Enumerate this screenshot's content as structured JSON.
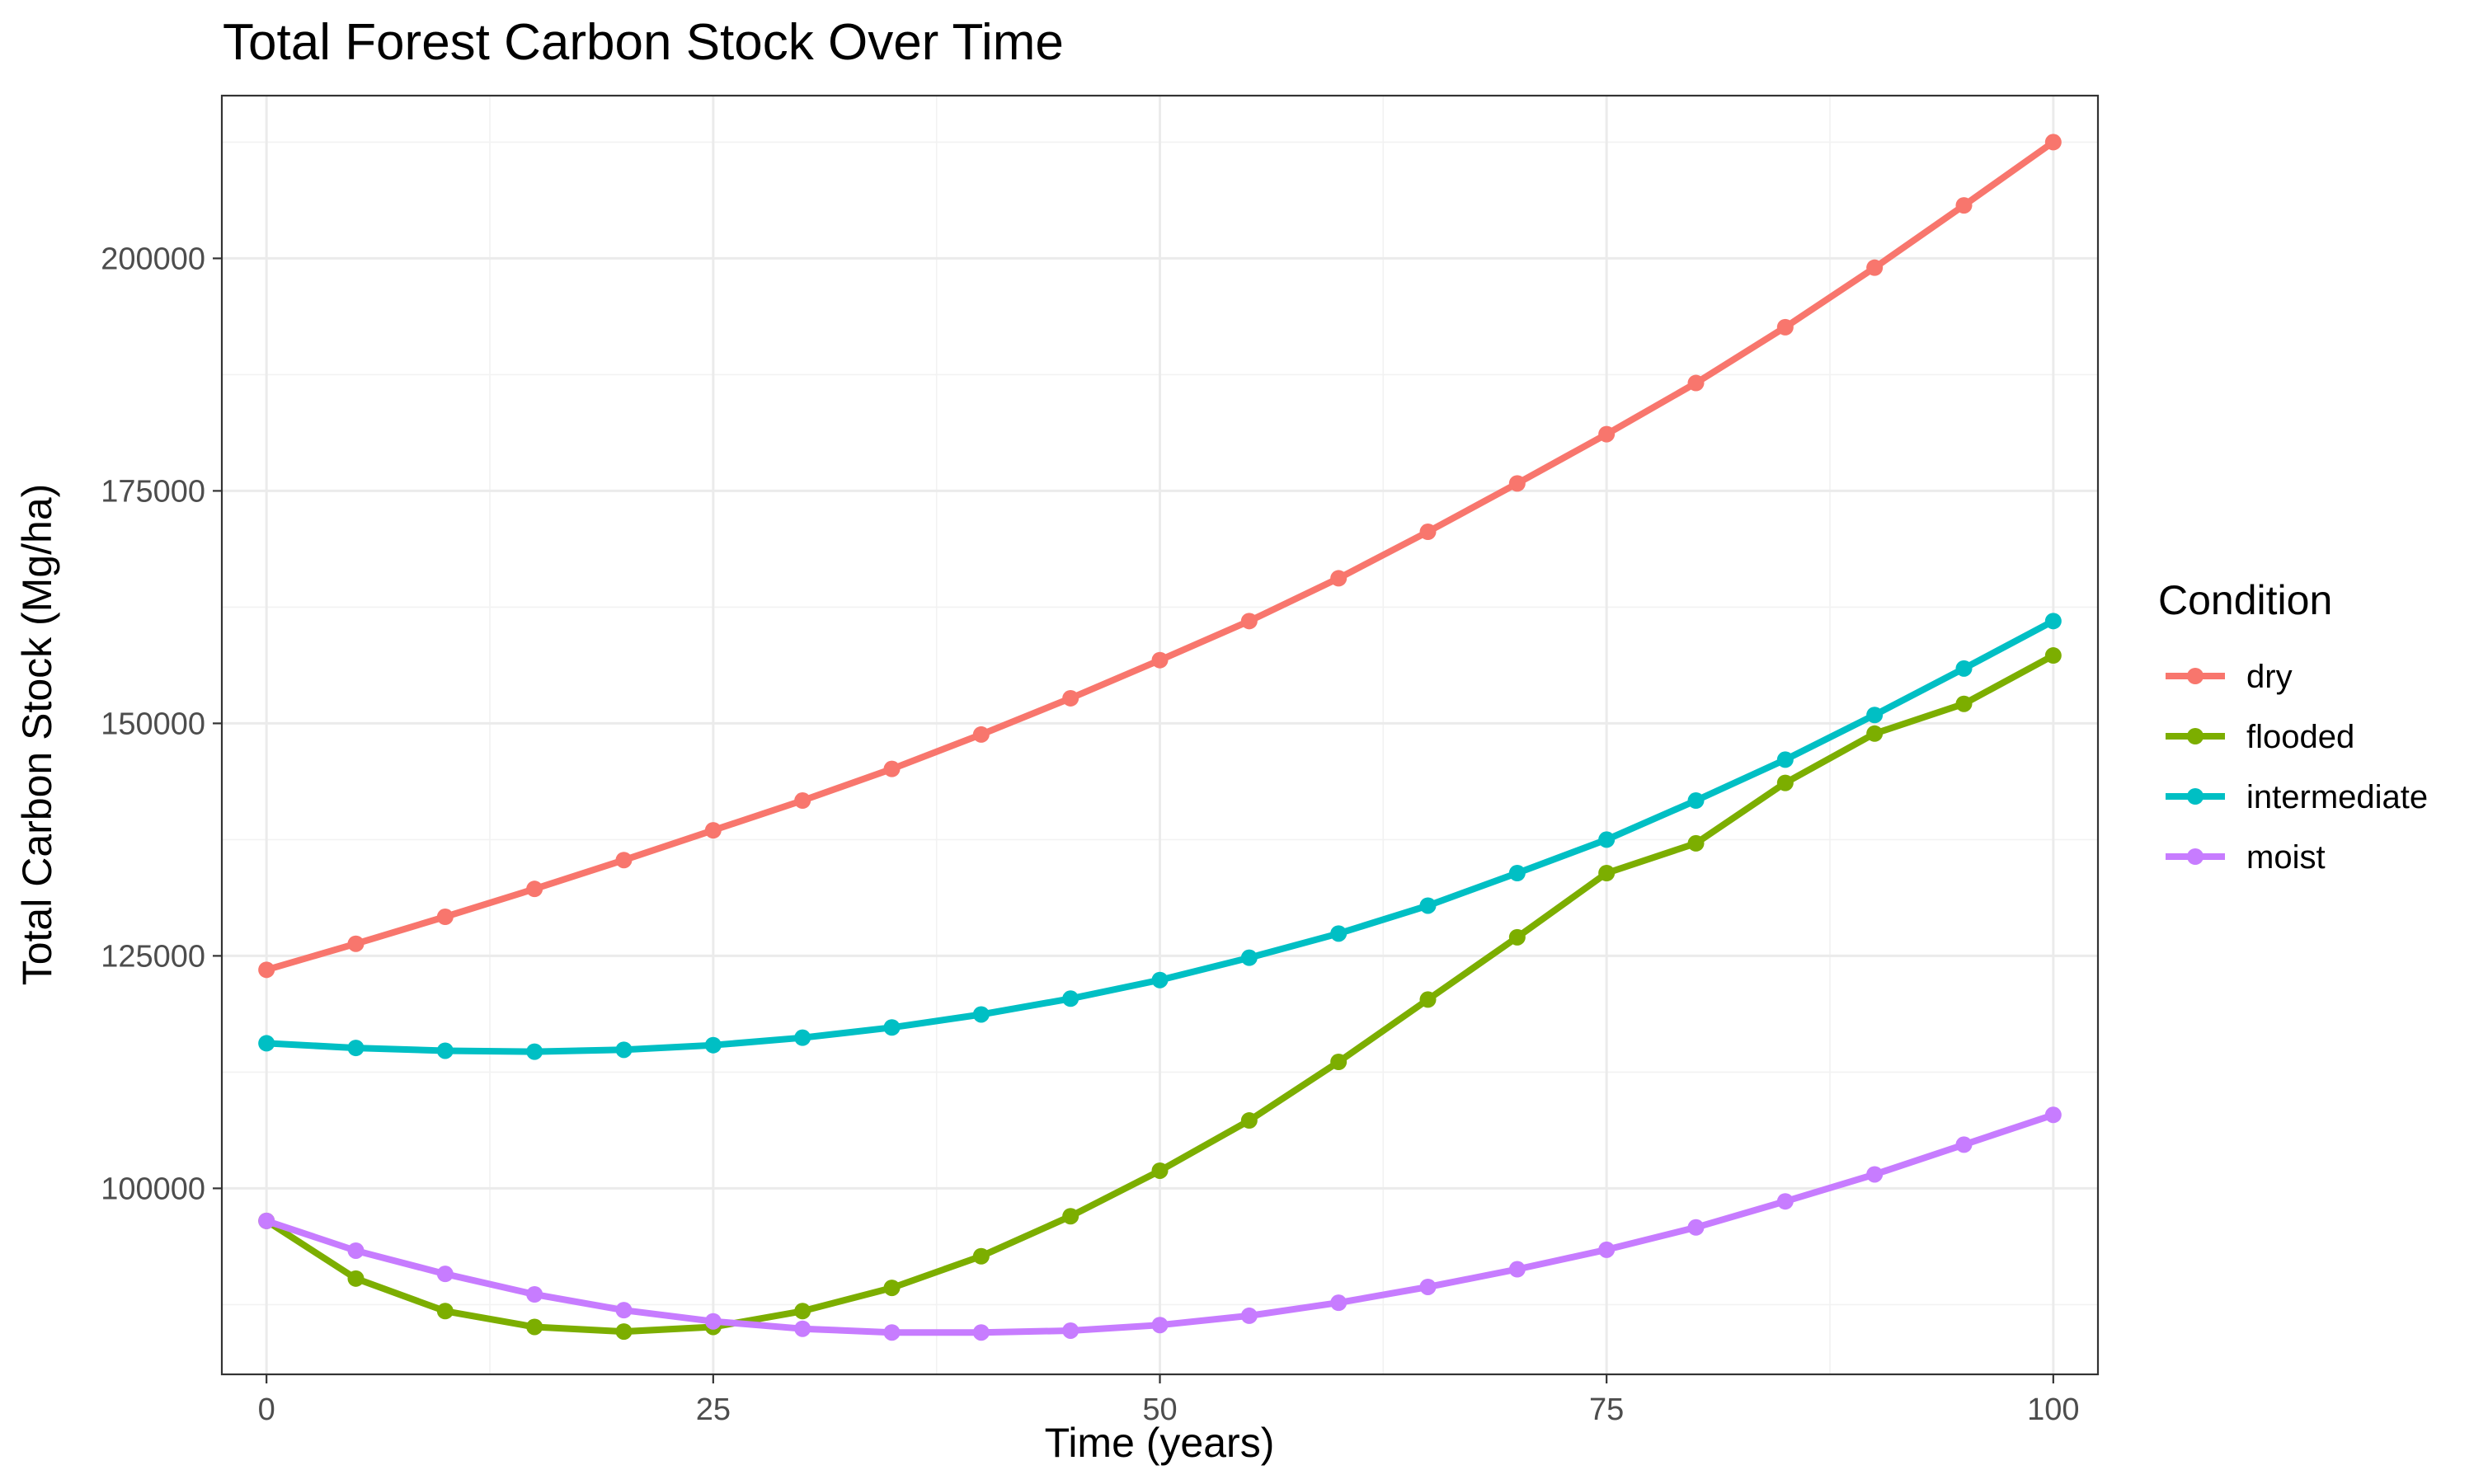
{
  "chart_data": {
    "type": "line",
    "title": "Total Forest Carbon Stock Over Time",
    "xlabel": "Time (years)",
    "ylabel": "Total Carbon Stock (Mg/ha)",
    "xlim": [
      -2.5,
      102.5
    ],
    "ylim": [
      80000,
      217500
    ],
    "x_ticks": [
      0,
      25,
      50,
      75,
      100
    ],
    "y_ticks": [
      100000,
      125000,
      150000,
      175000,
      200000
    ],
    "grid": true,
    "legend": {
      "title": "Condition",
      "position": "right"
    },
    "x": [
      0,
      5,
      10,
      15,
      20,
      25,
      30,
      35,
      40,
      45,
      50,
      55,
      60,
      65,
      70,
      75,
      80,
      85,
      90,
      95,
      100
    ],
    "series": [
      {
        "name": "dry",
        "color": "#F8766D",
        "values": [
          123500,
          126300,
          129200,
          132200,
          135300,
          138500,
          141700,
          145100,
          148800,
          152700,
          156800,
          161000,
          165600,
          170600,
          175800,
          181100,
          186600,
          192600,
          199000,
          205700,
          212500
        ]
      },
      {
        "name": "flooded",
        "color": "#7CAE00",
        "values": [
          96500,
          90300,
          86800,
          85100,
          84600,
          85100,
          86800,
          89300,
          92700,
          97000,
          101900,
          107300,
          113600,
          120300,
          127000,
          133900,
          137100,
          143600,
          148900,
          152100,
          157300
        ]
      },
      {
        "name": "intermediate",
        "color": "#00BFC4",
        "values": [
          115600,
          115100,
          114800,
          114700,
          114900,
          115400,
          116200,
          117300,
          118700,
          120400,
          122400,
          124800,
          127400,
          130400,
          133900,
          137500,
          141700,
          146100,
          150900,
          155900,
          161000
        ]
      },
      {
        "name": "moist",
        "color": "#C77CFF",
        "values": [
          96500,
          93300,
          90800,
          88600,
          86900,
          85700,
          84900,
          84500,
          84500,
          84700,
          85300,
          86300,
          87700,
          89400,
          91300,
          93400,
          95800,
          98600,
          101500,
          104700,
          107900
        ]
      }
    ]
  }
}
